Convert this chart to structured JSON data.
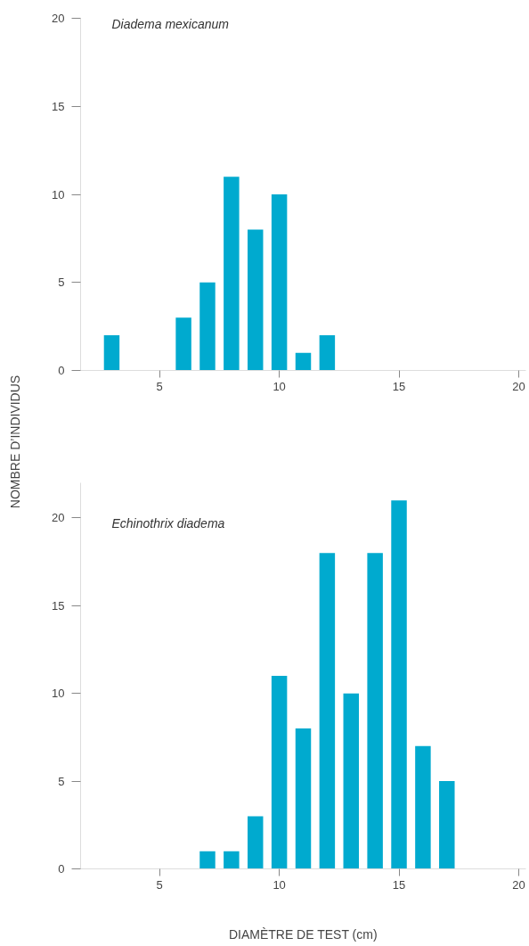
{
  "chart_data": [
    {
      "type": "bar",
      "title": "Diadema mexicanum",
      "ylabel": "NOMBRE D’INDIVIDUS",
      "x": [
        3,
        6,
        7,
        8,
        9,
        10,
        11,
        12
      ],
      "series": [
        {
          "color": "#00aacf",
          "values": [
            2,
            3,
            5,
            11,
            8,
            10,
            1,
            2
          ]
        }
      ],
      "xlim": [
        1.7,
        20.3
      ],
      "xticks": [
        5,
        10,
        15,
        20
      ],
      "ylim": [
        0,
        20
      ],
      "yticks": [
        0,
        5,
        10,
        15,
        20
      ]
    },
    {
      "type": "bar",
      "title": "Echinothrix diadema",
      "xlabel": "DIAMÈTRE DE TEST (cm)",
      "x": [
        7,
        8,
        9,
        10,
        11,
        12,
        13,
        14,
        15,
        16,
        17
      ],
      "series": [
        {
          "color": "#00aacf",
          "values": [
            1,
            1,
            3,
            11,
            8,
            18,
            10,
            18,
            21,
            7,
            5
          ]
        }
      ],
      "xlim": [
        1.7,
        20.3
      ],
      "xticks": [
        5,
        10,
        15,
        20
      ],
      "ylim": [
        0,
        22
      ],
      "yticks": [
        0,
        5,
        10,
        15,
        20
      ]
    }
  ]
}
